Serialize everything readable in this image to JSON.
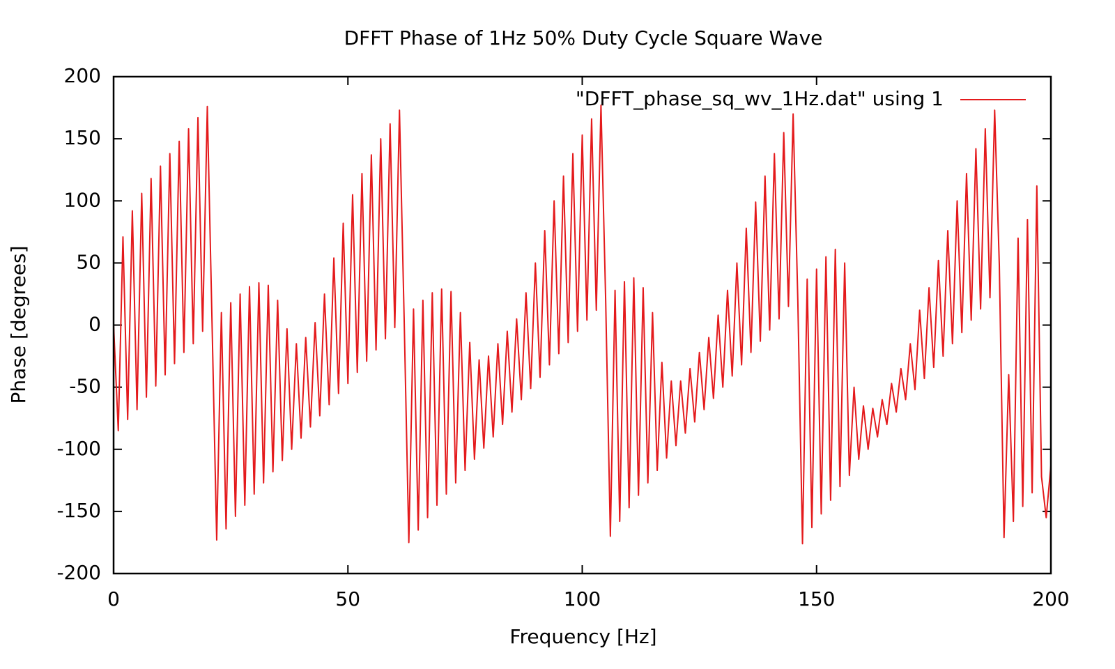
{
  "chart_data": {
    "type": "line",
    "title": "DFFT Phase of 1Hz 50% Duty Cycle Square Wave",
    "xlabel": "Frequency [Hz]",
    "ylabel": "Phase [degrees]",
    "xlim": [
      0,
      200
    ],
    "ylim": [
      -200,
      200
    ],
    "xticks": [
      0,
      50,
      100,
      150,
      200
    ],
    "yticks": [
      -200,
      -150,
      -100,
      -50,
      0,
      50,
      100,
      150,
      200
    ],
    "legend": "top right",
    "x": [
      0,
      1,
      2,
      3,
      4,
      5,
      6,
      7,
      8,
      9,
      10,
      11,
      12,
      13,
      14,
      15,
      16,
      17,
      18,
      19,
      20,
      21,
      22,
      23,
      24,
      25,
      26,
      27,
      28,
      29,
      30,
      31,
      32,
      33,
      34,
      35,
      36,
      37,
      38,
      39,
      40,
      41,
      42,
      43,
      44,
      45,
      46,
      47,
      48,
      49,
      50,
      51,
      52,
      53,
      54,
      55,
      56,
      57,
      58,
      59,
      60,
      61,
      62,
      63,
      64,
      65,
      66,
      67,
      68,
      69,
      70,
      71,
      72,
      73,
      74,
      75,
      76,
      77,
      78,
      79,
      80,
      81,
      82,
      83,
      84,
      85,
      86,
      87,
      88,
      89,
      90,
      91,
      92,
      93,
      94,
      95,
      96,
      97,
      98,
      99,
      100,
      101,
      102,
      103,
      104,
      105,
      106,
      107,
      108,
      109,
      110,
      111,
      112,
      113,
      114,
      115,
      116,
      117,
      118,
      119,
      120,
      121,
      122,
      123,
      124,
      125,
      126,
      127,
      128,
      129,
      130,
      131,
      132,
      133,
      134,
      135,
      136,
      137,
      138,
      139,
      140,
      141,
      142,
      143,
      144,
      145,
      146,
      147,
      148,
      149,
      150,
      151,
      152,
      153,
      154,
      155,
      156,
      157,
      158,
      159,
      160,
      161,
      162,
      163,
      164,
      165,
      166,
      167,
      168,
      169,
      170,
      171,
      172,
      173,
      174,
      175,
      176,
      177,
      178,
      179,
      180,
      181,
      182,
      183,
      184,
      185,
      186,
      187,
      188,
      189,
      190,
      191,
      192,
      193,
      194,
      195,
      196,
      197,
      198,
      199,
      200
    ],
    "series": [
      {
        "name": "\"DFFT_phase_sq_wv_1Hz.dat\" using 1",
        "color": "#e41a1c",
        "values": [
          0,
          -85,
          71,
          -76,
          92,
          -68,
          106,
          -58,
          118,
          -49,
          128,
          -40,
          138,
          -31,
          148,
          -22,
          158,
          -15,
          167,
          -5,
          176,
          3,
          -173,
          10,
          -164,
          18,
          -154,
          25,
          -145,
          31,
          -136,
          34,
          -127,
          32,
          -118,
          20,
          -109,
          -3,
          -100,
          -15,
          -91,
          -10,
          -82,
          2,
          -73,
          25,
          -64,
          54,
          -55,
          82,
          -47,
          105,
          -38,
          122,
          -29,
          137,
          -20,
          150,
          -11,
          162,
          -2,
          173,
          5,
          -175,
          13,
          -165,
          20,
          -155,
          26,
          -145,
          29,
          -136,
          27,
          -127,
          10,
          -117,
          -14,
          -108,
          -28,
          -99,
          -25,
          -90,
          -15,
          -80,
          -5,
          -70,
          5,
          -60,
          26,
          -51,
          50,
          -42,
          76,
          -32,
          100,
          -23,
          120,
          -14,
          138,
          -5,
          153,
          4,
          166,
          12,
          177,
          20,
          -170,
          28,
          -158,
          35,
          -147,
          38,
          -137,
          30,
          -127,
          10,
          -117,
          -30,
          -107,
          -45,
          -97,
          -45,
          -87,
          -35,
          -78,
          -22,
          -68,
          -10,
          -59,
          8,
          -50,
          28,
          -41,
          50,
          -32,
          78,
          -22,
          99,
          -13,
          120,
          -4,
          138,
          5,
          155,
          15,
          170,
          20,
          -176,
          37,
          -163,
          45,
          -152,
          55,
          -141,
          61,
          -130,
          50,
          -121,
          -50,
          -108,
          -65,
          -100,
          -67,
          -90,
          -60,
          -80,
          -47,
          -70,
          -35,
          -60,
          -15,
          -52,
          12,
          -43,
          30,
          -34,
          52,
          -25,
          76,
          -15,
          100,
          -6,
          122,
          4,
          142,
          13,
          158,
          22,
          173,
          48,
          -171,
          -40,
          -158,
          70,
          -146,
          85,
          -135,
          112,
          -122,
          -155,
          -113
        ]
      }
    ]
  }
}
